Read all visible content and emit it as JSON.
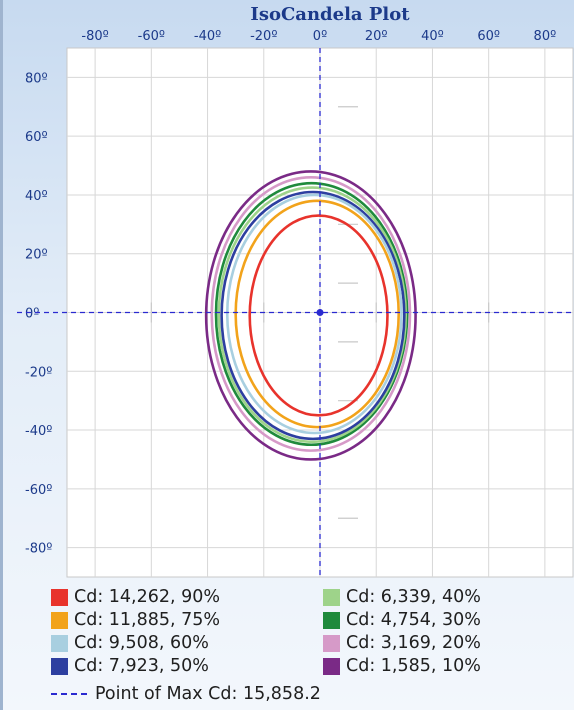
{
  "chart_data": {
    "type": "isocandela",
    "title": "IsoCandela Plot",
    "x_ticks": [
      "-80º",
      "-60º",
      "-40º",
      "-20º",
      "0º",
      "20º",
      "40º",
      "60º",
      "80º"
    ],
    "y_ticks": [
      "80º",
      "60º",
      "40º",
      "20º",
      "0º",
      "-20º",
      "-40º",
      "-60º",
      "-80º"
    ],
    "x_tick_values": [
      -80,
      -60,
      -40,
      -20,
      0,
      20,
      40,
      60,
      80
    ],
    "y_tick_values": [
      80,
      60,
      40,
      20,
      0,
      -20,
      -40,
      -60,
      -80
    ],
    "xlim": [
      -90,
      90
    ],
    "ylim": [
      -90,
      90
    ],
    "grid": true,
    "max_point": {
      "x": 0,
      "y": 0,
      "label": "Point of Max Cd: 15,858.2"
    },
    "contours": [
      {
        "label": "Cd: 14,262, 90%",
        "color": "#e8332c",
        "left": -25,
        "right": 24,
        "top": 33,
        "bottom": -35
      },
      {
        "label": "Cd: 11,885, 75%",
        "color": "#f2a31b",
        "left": -30,
        "right": 28,
        "top": 38,
        "bottom": -39
      },
      {
        "label": "Cd: 9,508, 60%",
        "color": "#a8cfe0",
        "left": -33,
        "right": 29,
        "top": 40,
        "bottom": -41
      },
      {
        "label": "Cd: 7,923, 50%",
        "color": "#2d3fa0",
        "left": -35,
        "right": 30,
        "top": 41,
        "bottom": -43
      },
      {
        "label": "Cd: 6,339, 40%",
        "color": "#9ed38a",
        "left": -36,
        "right": 30.5,
        "top": 42.5,
        "bottom": -44
      },
      {
        "label": "Cd: 4,754, 30%",
        "color": "#1f8a3c",
        "left": -37,
        "right": 31,
        "top": 44,
        "bottom": -45
      },
      {
        "label": "Cd: 3,169, 20%",
        "color": "#d69ac8",
        "left": -38.5,
        "right": 32,
        "top": 46,
        "bottom": -47
      },
      {
        "label": "Cd: 1,585, 10%",
        "color": "#7a2a86",
        "left": -40.5,
        "right": 34,
        "top": 48,
        "bottom": -50
      }
    ]
  },
  "legend": {
    "items": [
      {
        "label": "Cd: 14,262, 90%",
        "color": "#e8332c"
      },
      {
        "label": "Cd: 11,885, 75%",
        "color": "#f2a31b"
      },
      {
        "label": "Cd: 9,508, 60%",
        "color": "#a8cfe0"
      },
      {
        "label": "Cd: 7,923, 50%",
        "color": "#2d3fa0"
      },
      {
        "label": "Cd: 6,339, 40%",
        "color": "#9ed38a"
      },
      {
        "label": "Cd: 4,754, 30%",
        "color": "#1f8a3c"
      },
      {
        "label": "Cd: 3,169, 20%",
        "color": "#d69ac8"
      },
      {
        "label": "Cd: 1,585, 10%",
        "color": "#7a2a86"
      }
    ],
    "max_label": "Point of Max Cd: 15,858.2"
  },
  "colors": {
    "axis_text": "#1c3a8a",
    "title": "#1c3a8a",
    "crosshair": "#2a2ad0",
    "grid": "#d7d7d7"
  }
}
